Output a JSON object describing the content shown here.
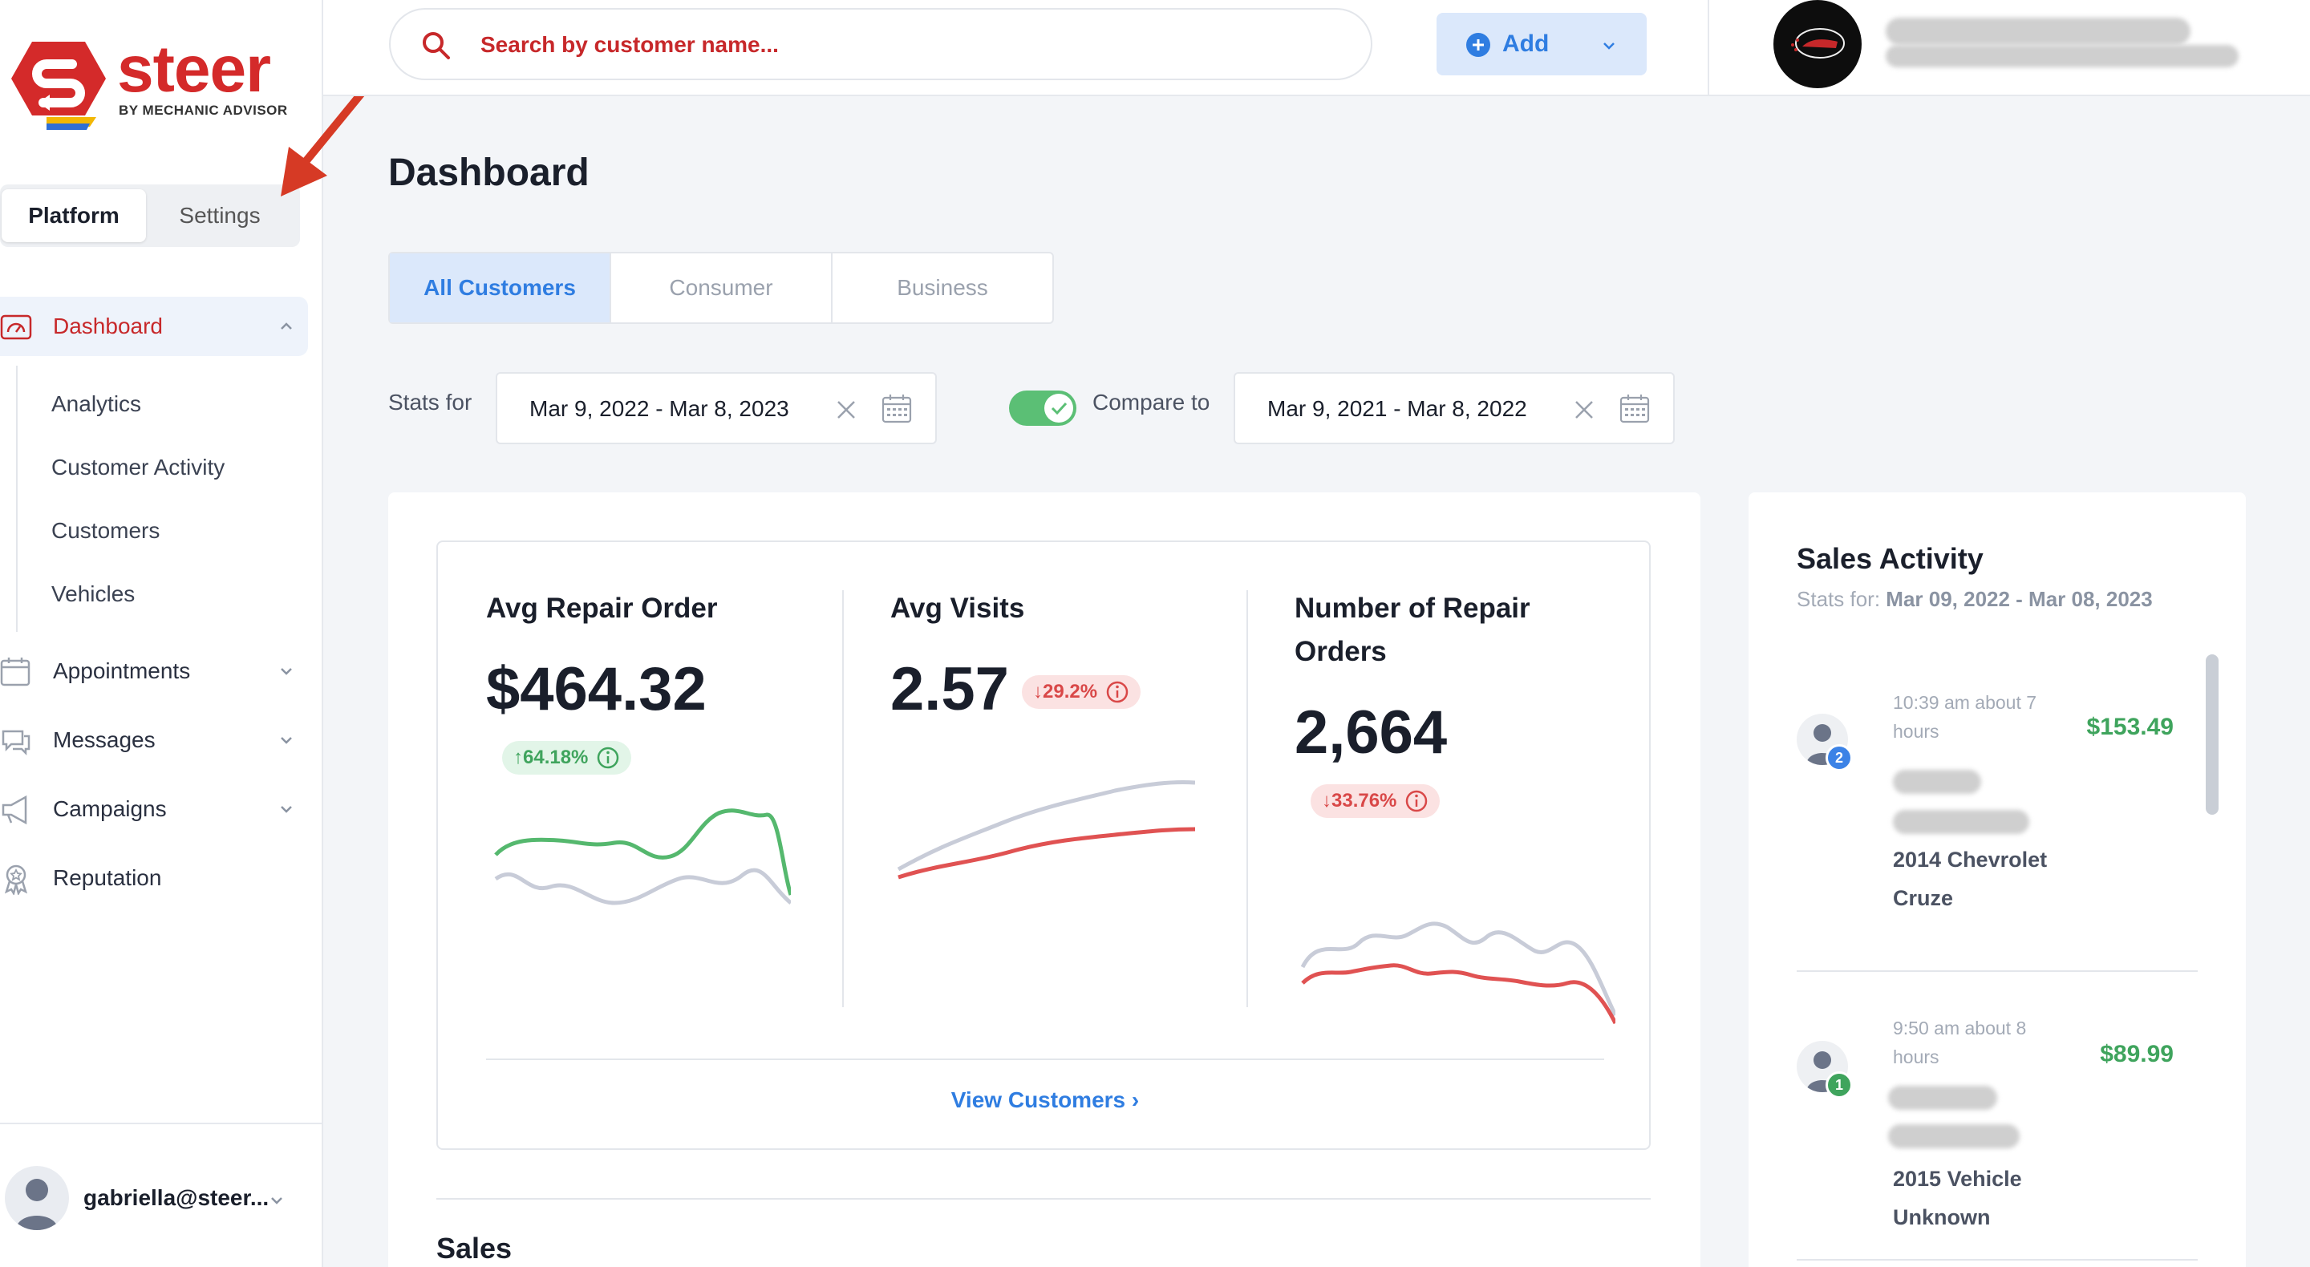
{
  "brand": {
    "name": "steer",
    "tagline": "BY MECHANIC ADVISOR",
    "red": "#d42a2a"
  },
  "mode_switch": {
    "platform": "Platform",
    "settings": "Settings"
  },
  "nav": {
    "dashboard": "Dashboard",
    "sub_items": [
      "Analytics",
      "Customer Activity",
      "Customers",
      "Vehicles"
    ],
    "appointments": "Appointments",
    "messages": "Messages",
    "campaigns": "Campaigns",
    "reputation": "Reputation"
  },
  "user": {
    "email": "gabriella@steer..."
  },
  "search": {
    "placeholder": "Search by customer name..."
  },
  "add_button": {
    "label": "Add"
  },
  "page": {
    "title": "Dashboard"
  },
  "tabs": [
    "All Customers",
    "Consumer",
    "Business"
  ],
  "filters": {
    "stats_for_label": "Stats for",
    "stats_range": "Mar 9, 2022 - Mar 8, 2023",
    "compare_label": "Compare to",
    "compare_range": "Mar 9, 2021 - Mar 8, 2022",
    "compare_enabled": true
  },
  "kpis": [
    {
      "title": "Avg Repair Order",
      "value": "$464.32",
      "change": "64.18%",
      "direction": "up"
    },
    {
      "title": "Avg Visits",
      "value": "2.57",
      "change": "29.2%",
      "direction": "down"
    },
    {
      "title": "Number of Repair Orders",
      "value": "2,664",
      "change": "33.76%",
      "direction": "down"
    }
  ],
  "view_customers": "View Customers",
  "sales": {
    "title": "Sales"
  },
  "sales_activity": {
    "title": "Sales Activity",
    "stats_prefix": "Stats for:",
    "stats_range": "Mar 09, 2022 - Mar 08, 2023",
    "items": [
      {
        "count": "2",
        "time": "10:39 am about 7 hours",
        "amount": "$153.49",
        "vehicle": "2014 Chevrolet Cruze",
        "badge_color": "#3b82e6"
      },
      {
        "count": "1",
        "time": "9:50 am about 8 hours",
        "amount": "$89.99",
        "vehicle": "2015 Vehicle Unknown",
        "badge_color": "#3fa45d"
      }
    ]
  },
  "colors": {
    "accent_blue": "#2f7de1",
    "positive": "#3fa45d",
    "negative": "#d94848",
    "compare_line": "#c8ccd8"
  }
}
